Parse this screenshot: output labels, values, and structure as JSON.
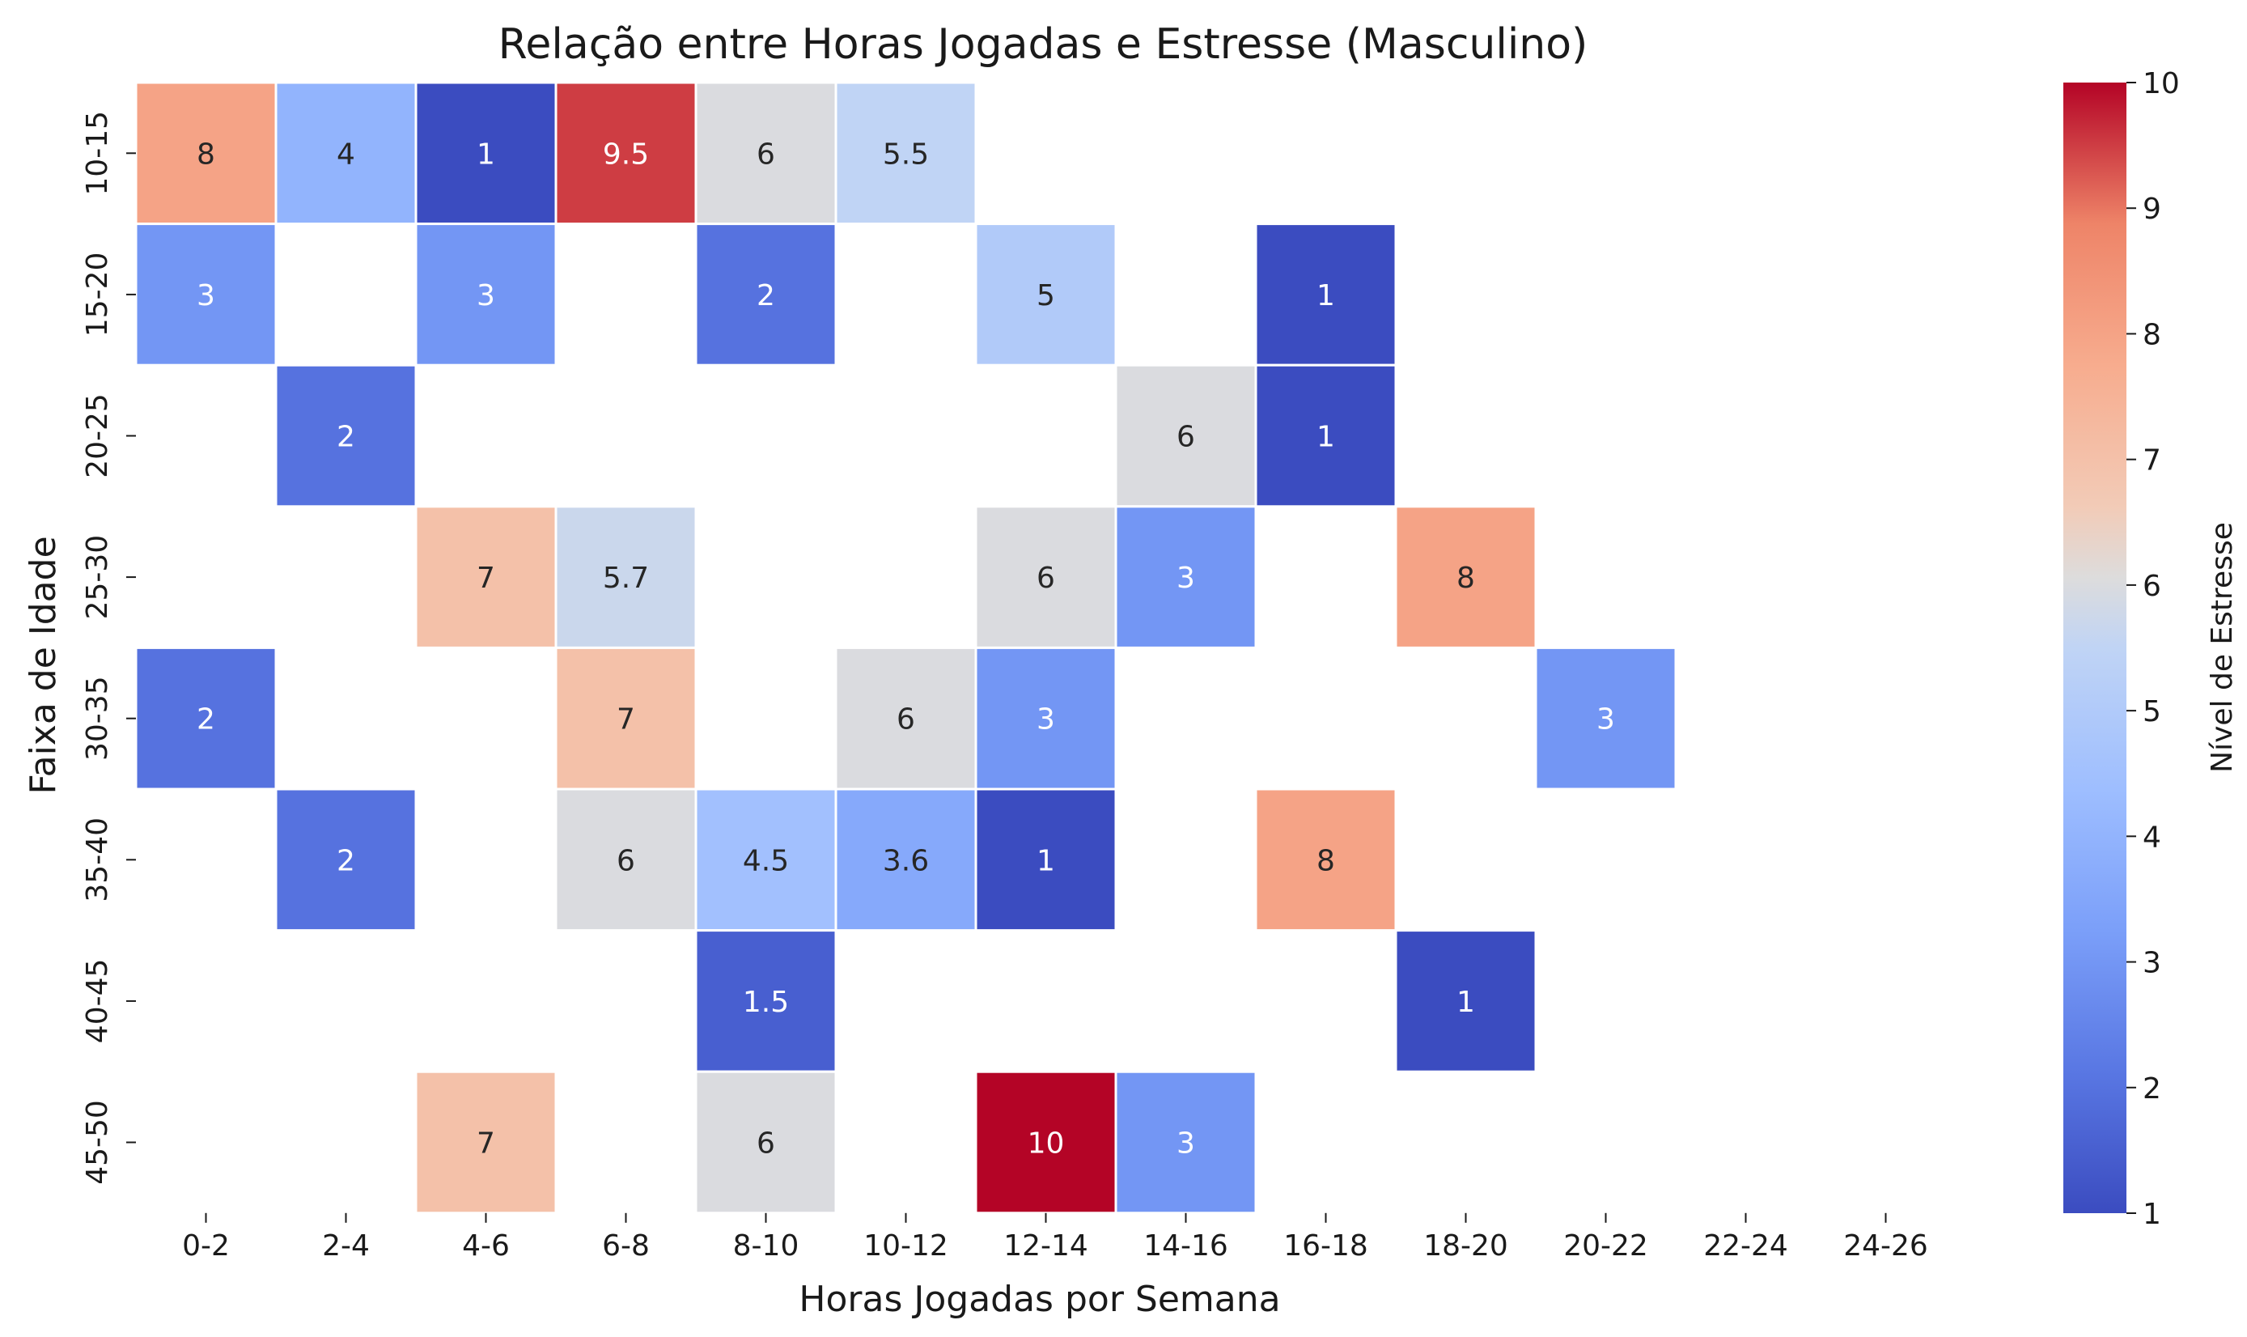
{
  "chart_data": {
    "type": "heatmap",
    "title": "Relação entre Horas Jogadas e Estresse (Masculino)",
    "xlabel": "Horas Jogadas por Semana",
    "ylabel": "Faixa de Idade",
    "x_categories": [
      "0-2",
      "2-4",
      "4-6",
      "6-8",
      "8-10",
      "10-12",
      "12-14",
      "14-16",
      "16-18",
      "18-20",
      "20-22",
      "22-24",
      "24-26"
    ],
    "y_categories": [
      "10-15",
      "15-20",
      "20-25",
      "25-30",
      "30-35",
      "35-40",
      "40-45",
      "45-50"
    ],
    "values": [
      [
        8,
        4,
        1,
        9.5,
        6,
        5.5,
        null,
        null,
        null,
        null,
        null,
        null,
        null
      ],
      [
        3,
        null,
        3,
        null,
        2,
        null,
        5,
        null,
        1,
        null,
        null,
        null,
        null
      ],
      [
        null,
        2,
        null,
        null,
        null,
        null,
        null,
        6,
        1,
        null,
        null,
        null,
        null
      ],
      [
        null,
        null,
        7,
        5.7,
        null,
        null,
        6,
        3,
        null,
        8,
        null,
        null,
        null
      ],
      [
        2,
        null,
        null,
        7,
        null,
        6,
        3,
        null,
        null,
        null,
        3,
        null,
        null
      ],
      [
        null,
        2,
        null,
        6,
        4.5,
        3.6,
        1,
        null,
        8,
        null,
        null,
        null,
        null
      ],
      [
        null,
        null,
        null,
        null,
        1.5,
        null,
        null,
        null,
        null,
        1,
        null,
        null,
        null
      ],
      [
        null,
        null,
        7,
        null,
        6,
        null,
        10,
        3,
        null,
        null,
        null,
        null,
        null
      ]
    ],
    "colorbar": {
      "label": "Nível de Estresse",
      "range": [
        1,
        10
      ],
      "ticks": [
        "1",
        "2",
        "3",
        "4",
        "5",
        "6",
        "7",
        "8",
        "9",
        "10"
      ],
      "colormap": "coolwarm"
    },
    "grid": false
  }
}
